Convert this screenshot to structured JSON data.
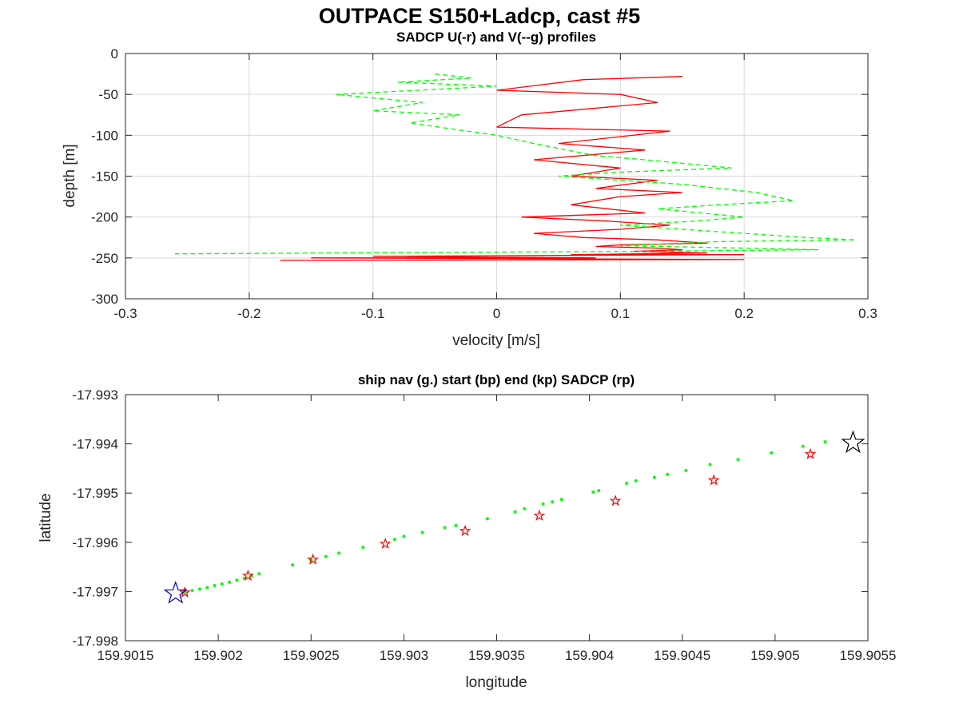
{
  "figure": {
    "title": "OUTPACE S150+Ladcp, cast #5"
  },
  "chart_data": [
    {
      "type": "line",
      "title": "SADCP U(-r) and V(--g) profiles",
      "xlabel": "velocity [m/s]",
      "ylabel": "depth [m]",
      "xlim": [
        -0.3,
        0.3
      ],
      "ylim": [
        -300,
        0
      ],
      "xticks": [
        -0.3,
        -0.2,
        -0.1,
        0,
        0.1,
        0.2,
        0.3
      ],
      "xtick_labels": [
        "-0.3",
        "-0.2",
        "-0.1",
        "0",
        "0.1",
        "0.2",
        "0.3"
      ],
      "yticks": [
        0,
        -50,
        -100,
        -150,
        -200,
        -250,
        -300
      ],
      "ytick_labels": [
        "0",
        "-50",
        "-100",
        "-150",
        "-200",
        "-250",
        "-300"
      ],
      "grid": true,
      "series": [
        {
          "color": "#ff0000",
          "style": "solid",
          "x": [
            0.15,
            0.07,
            0.0,
            0.1,
            0.13,
            0.02,
            0.0,
            0.14,
            0.05,
            0.12,
            0.03,
            0.1,
            0.06,
            0.13,
            0.08,
            0.15,
            0.1,
            0.06,
            0.12,
            0.02,
            0.09,
            0.14,
            0.1,
            0.03,
            0.07,
            0.13,
            0.17,
            0.1,
            0.08,
            0.13,
            0.15,
            0.11,
            0.17,
            0.06,
            0.2,
            -0.1,
            0.08,
            -0.15,
            0.2,
            -0.175
          ],
          "y": [
            -28,
            -32,
            -45,
            -50,
            -60,
            -75,
            -90,
            -95,
            -110,
            -118,
            -130,
            -140,
            -150,
            -155,
            -165,
            -170,
            -175,
            -185,
            -195,
            -200,
            -205,
            -210,
            -215,
            -220,
            -225,
            -228,
            -232,
            -234,
            -236,
            -238,
            -240,
            -242,
            -244,
            -246,
            -246,
            -248,
            -250,
            -250,
            -252,
            -253
          ]
        },
        {
          "color": "#00ff00",
          "style": "dashed",
          "x": [
            -0.05,
            -0.02,
            -0.08,
            0.0,
            -0.13,
            -0.06,
            -0.1,
            -0.03,
            -0.07,
            0.0,
            0.03,
            0.08,
            0.12,
            0.19,
            0.1,
            0.05,
            0.15,
            0.21,
            0.24,
            0.18,
            0.13,
            0.2,
            0.16,
            0.1,
            0.15,
            0.25,
            0.29,
            0.18,
            0.1,
            0.2,
            0.26,
            0.12,
            -0.26
          ],
          "y": [
            -25,
            -30,
            -35,
            -40,
            -50,
            -60,
            -70,
            -75,
            -85,
            -100,
            -110,
            -125,
            -130,
            -140,
            -145,
            -150,
            -160,
            -170,
            -180,
            -185,
            -190,
            -200,
            -205,
            -210,
            -215,
            -225,
            -228,
            -230,
            -235,
            -238,
            -240,
            -242,
            -245
          ]
        }
      ]
    },
    {
      "type": "scatter",
      "title": "ship nav (g.) start (bp) end (kp) SADCP (rp)",
      "xlabel": "longitude",
      "ylabel": "latitude",
      "xlim": [
        159.9015,
        159.9055
      ],
      "ylim": [
        -17.998,
        -17.993
      ],
      "xticks": [
        159.9015,
        159.902,
        159.9025,
        159.903,
        159.9035,
        159.904,
        159.9045,
        159.905,
        159.9055
      ],
      "xtick_labels": [
        "159.9015",
        "159.902",
        "159.9025",
        "159.903",
        "159.9035",
        "159.904",
        "159.9045",
        "159.905",
        "159.9055"
      ],
      "yticks": [
        -17.993,
        -17.994,
        -17.995,
        -17.996,
        -17.997,
        -17.998
      ],
      "ytick_labels": [
        "-17.993",
        "-17.994",
        "-17.995",
        "-17.996",
        "-17.997",
        "-17.998"
      ],
      "grid": false,
      "series": [
        {
          "marker": "dot",
          "color": "#00ff00",
          "x": [
            159.90182,
            159.90186,
            159.9019,
            159.90194,
            159.90198,
            159.90202,
            159.90206,
            159.9021,
            159.90214,
            159.90218,
            159.90222,
            159.9024,
            159.9025,
            159.90258,
            159.90265,
            159.90278,
            159.90295,
            159.903,
            159.9031,
            159.90322,
            159.90328,
            159.90345,
            159.9036,
            159.90365,
            159.90375,
            159.9038,
            159.90385,
            159.90402,
            159.90405,
            159.9042,
            159.90425,
            159.90435,
            159.90442,
            159.90452,
            159.90465,
            159.9048,
            159.90498,
            159.90515,
            159.90527
          ],
          "y": [
            -17.99701,
            -17.99698,
            -17.99695,
            -17.99692,
            -17.99688,
            -17.99685,
            -17.99681,
            -17.99677,
            -17.99673,
            -17.99668,
            -17.99664,
            -17.99646,
            -17.99636,
            -17.99629,
            -17.99622,
            -17.9961,
            -17.99594,
            -17.99588,
            -17.9958,
            -17.9957,
            -17.99566,
            -17.99552,
            -17.99538,
            -17.99532,
            -17.99522,
            -17.99518,
            -17.99513,
            -17.99498,
            -17.99495,
            -17.9948,
            -17.99475,
            -17.99468,
            -17.99462,
            -17.99454,
            -17.99442,
            -17.99432,
            -17.99418,
            -17.99405,
            -17.99396
          ]
        },
        {
          "marker": "pentagram",
          "color": "#ff0000",
          "label": "SADCP",
          "x": [
            159.90182,
            159.90216,
            159.90251,
            159.9029,
            159.90333,
            159.90373,
            159.90414,
            159.90467,
            159.90519
          ],
          "y": [
            -17.99702,
            -17.99668,
            -17.99635,
            -17.99603,
            -17.99577,
            -17.99546,
            -17.99516,
            -17.99474,
            -17.99421
          ]
        },
        {
          "marker": "pentagram-large",
          "color": "#0000cc",
          "label": "start",
          "x": [
            159.90177
          ],
          "y": [
            -17.99704
          ]
        },
        {
          "marker": "pentagram-large",
          "color": "#000000",
          "label": "end",
          "x": [
            159.90542
          ],
          "y": [
            -17.99398
          ]
        }
      ]
    }
  ]
}
